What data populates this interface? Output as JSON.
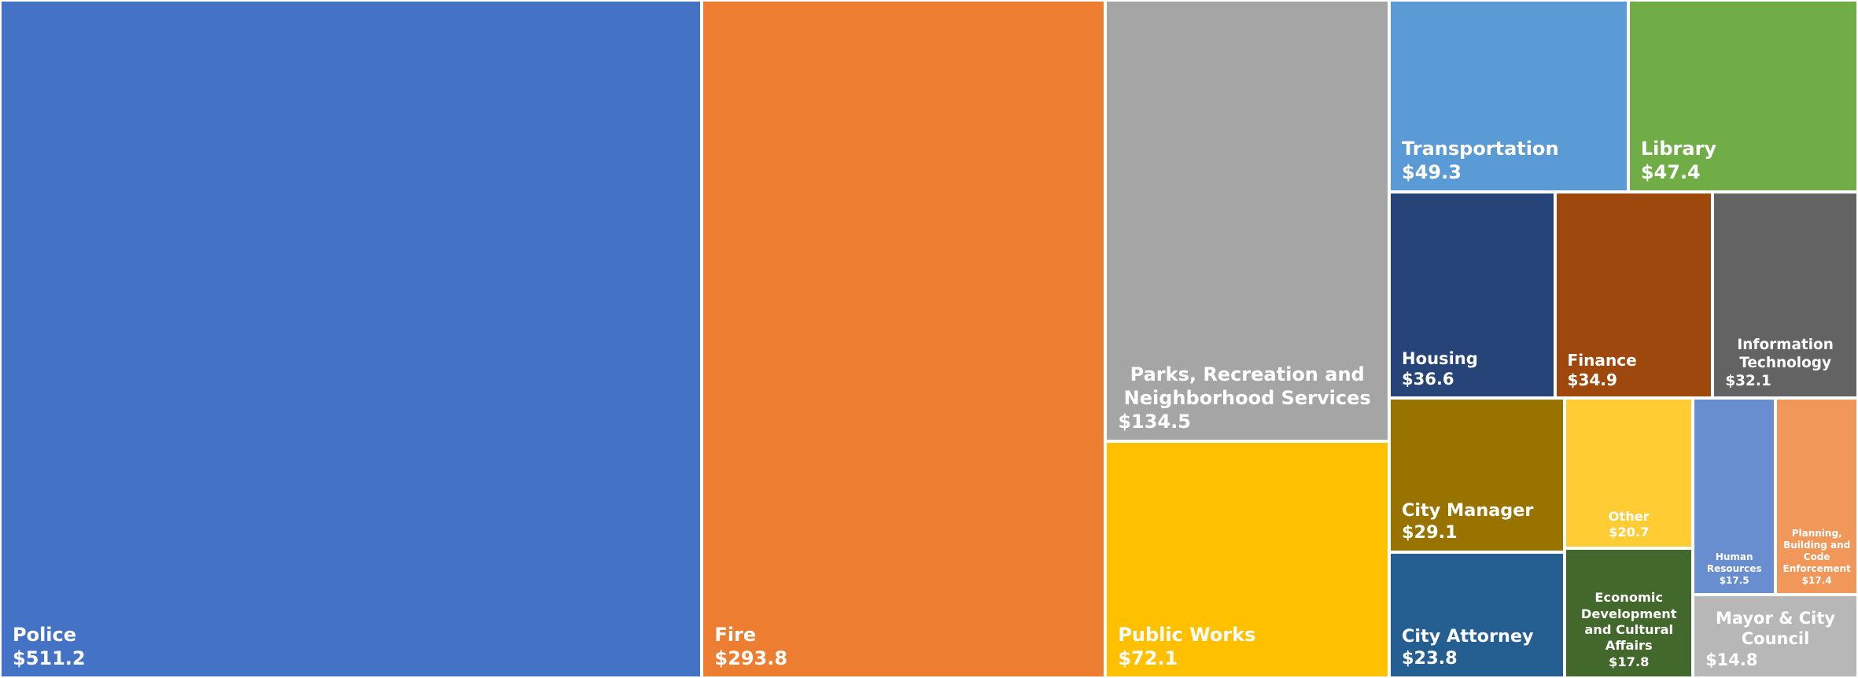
{
  "chart_data": {
    "type": "treemap",
    "categories": [
      "Police",
      "Fire",
      "Parks, Recreation and Neighborhood Services",
      "Public Works",
      "Transportation",
      "Library",
      "Housing",
      "Finance",
      "Information Technology",
      "City Manager",
      "City Attorney",
      "Other",
      "Economic Development and Cultural Affairs",
      "Human Resources",
      "Planning, Building and Code Enforcement",
      "Mayor & City Council"
    ],
    "values": [
      511.2,
      293.8,
      134.5,
      72.1,
      49.3,
      47.4,
      36.6,
      34.9,
      32.1,
      29.1,
      23.8,
      20.7,
      17.8,
      17.5,
      17.4,
      14.8
    ],
    "value_labels": [
      "$511.2",
      "$293.8",
      "$134.5",
      "$72.1",
      "$49.3",
      "$47.4",
      "$36.6",
      "$34.9",
      "$32.1",
      "$29.1",
      "$23.8",
      "$20.7",
      "$17.8",
      "$17.5",
      "$17.4",
      "$14.8"
    ],
    "colors": [
      "#4472c4",
      "#ed7d31",
      "#a5a5a5",
      "#ffc000",
      "#5b9bd5",
      "#70ad47",
      "#264478",
      "#9e480e",
      "#636363",
      "#997300",
      "#255e91",
      "#ffcd33",
      "#43682b",
      "#698ed0",
      "#f1975a",
      "#b7b7b7"
    ]
  }
}
